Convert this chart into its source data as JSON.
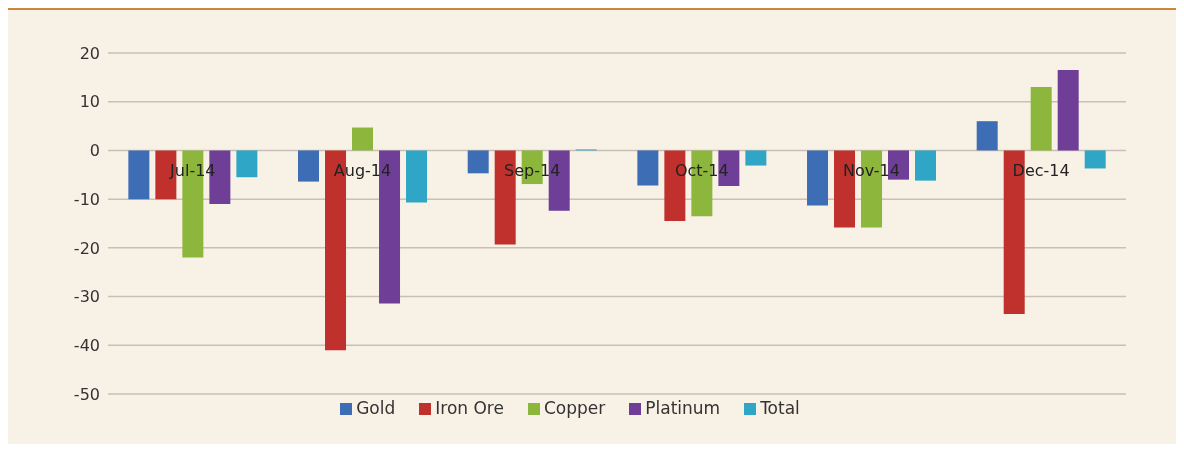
{
  "chart_data": {
    "type": "bar",
    "categories": [
      "Jul-14",
      "Aug-14",
      "Sep-14",
      "Oct-14",
      "Nov-14",
      "Dec-14"
    ],
    "series": [
      {
        "name": "Gold",
        "color": "#3d6db5",
        "values": [
          -10,
          -6.4,
          -4.7,
          -7.2,
          -11.3,
          6
        ]
      },
      {
        "name": "Iron Ore",
        "color": "#c0302c",
        "values": [
          -10,
          -41,
          -19.3,
          -14.5,
          -15.8,
          -33.6
        ]
      },
      {
        "name": "Copper",
        "color": "#8db63c",
        "values": [
          -22,
          4.7,
          -6.9,
          -13.5,
          -15.8,
          13
        ]
      },
      {
        "name": "Platinum",
        "color": "#6f3f98",
        "values": [
          -11,
          -31.4,
          -12.4,
          -7.3,
          -6,
          16.5
        ]
      },
      {
        "name": "Total",
        "color": "#2fa6c6",
        "values": [
          -5.5,
          -10.7,
          0.2,
          -3.1,
          -6.2,
          -3.7
        ]
      }
    ],
    "ylim": [
      -50,
      20
    ],
    "yticks": [
      -50,
      -40,
      -30,
      -20,
      -10,
      0,
      10,
      20
    ],
    "grid": "y",
    "legend": "bottom"
  }
}
